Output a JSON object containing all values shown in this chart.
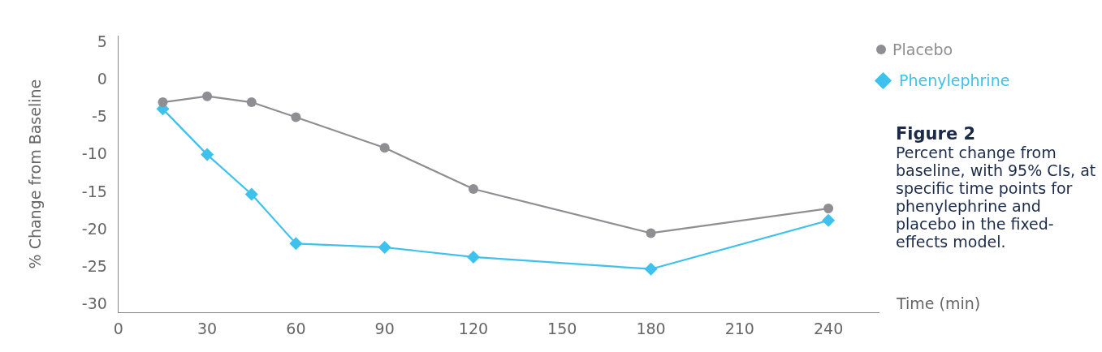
{
  "chart_data": {
    "type": "line",
    "title": "Figure 2",
    "subtitle": "Percent change from baseline, with 95% CIs, at specific time points for phenylephrine and placebo in the fixed-effects model.",
    "xlabel": "Time (min)",
    "ylabel": "% Change from Baseline",
    "x": [
      15,
      30,
      45,
      60,
      90,
      120,
      180,
      240
    ],
    "series": [
      {
        "name": "Placebo",
        "color": "#8e8e93",
        "marker": "circle",
        "values": [
          -2.9,
          -2.1,
          -2.9,
          -4.9,
          -9.0,
          -14.5,
          -20.4,
          -17.1
        ]
      },
      {
        "name": "Phenylephrine",
        "color": "#3ec1ec",
        "marker": "diamond",
        "values": [
          -3.8,
          -9.9,
          -15.2,
          -21.8,
          -22.3,
          -23.6,
          -25.2,
          -18.7
        ]
      }
    ],
    "xlim": [
      0,
      257
    ],
    "xticks": [
      0,
      30,
      60,
      90,
      120,
      150,
      180,
      210,
      240
    ],
    "ylim": [
      -31,
      6
    ],
    "yticks": [
      5,
      0,
      -5,
      -10,
      -15,
      -20,
      -25,
      -30
    ],
    "grid": false,
    "legend": "top right",
    "line_style": "solid"
  }
}
